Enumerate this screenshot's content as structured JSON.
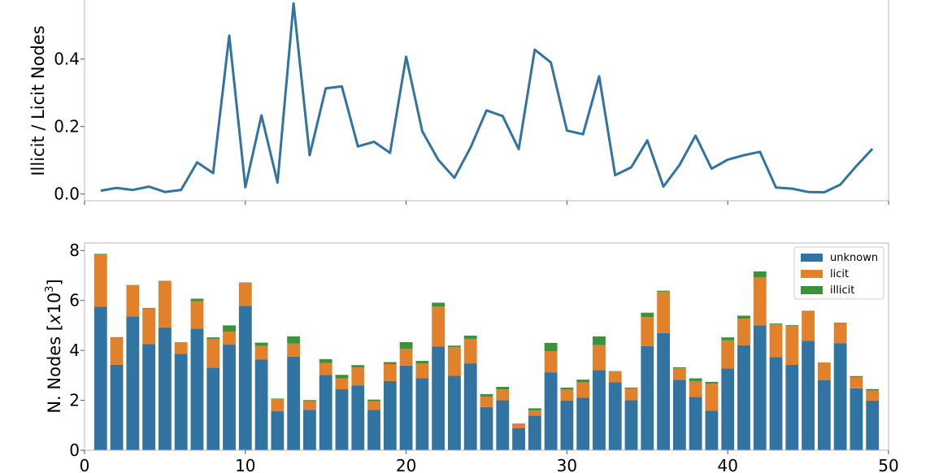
{
  "chart_data": [
    {
      "type": "line",
      "title": "",
      "ylabel": "Illicit / Licit Nodes",
      "xlim": [
        0,
        50
      ],
      "ylim": [
        -0.02,
        0.58
      ],
      "yticks": [
        "0.0",
        "0.2",
        "0.4"
      ],
      "ytick_values": [
        0,
        0.2,
        0.4
      ],
      "color": "#3274a1",
      "x": [
        1,
        2,
        3,
        4,
        5,
        6,
        7,
        8,
        9,
        10,
        11,
        12,
        13,
        14,
        15,
        16,
        17,
        18,
        19,
        20,
        21,
        22,
        23,
        24,
        25,
        26,
        27,
        28,
        29,
        30,
        31,
        32,
        33,
        34,
        35,
        36,
        37,
        38,
        39,
        40,
        41,
        42,
        43,
        44,
        45,
        46,
        47,
        48,
        49
      ],
      "values": [
        0.01,
        0.018,
        0.012,
        0.022,
        0.006,
        0.012,
        0.094,
        0.062,
        0.47,
        0.02,
        0.233,
        0.034,
        0.565,
        0.115,
        0.313,
        0.319,
        0.141,
        0.155,
        0.122,
        0.407,
        0.186,
        0.101,
        0.048,
        0.137,
        0.248,
        0.231,
        0.133,
        0.428,
        0.39,
        0.188,
        0.177,
        0.349,
        0.056,
        0.079,
        0.159,
        0.022,
        0.086,
        0.173,
        0.075,
        0.102,
        0.115,
        0.125,
        0.019,
        0.016,
        0.006,
        0.005,
        0.028,
        0.083,
        0.134
      ]
    },
    {
      "type": "bar",
      "stacked": true,
      "title": "",
      "ylabel": "N. Nodes [x10^3]",
      "ylabel_prefix": "N. Nodes [",
      "ylabel_italic": "x",
      "ylabel_base": "10",
      "ylabel_exp": "3",
      "ylabel_suffix": "]",
      "xlim": [
        0,
        50
      ],
      "ylim": [
        0,
        8.3
      ],
      "xticks": [
        "0",
        "10",
        "20",
        "30",
        "40",
        "50"
      ],
      "xtick_values": [
        0,
        10,
        20,
        30,
        40,
        50
      ],
      "yticks": [
        "0",
        "2",
        "4",
        "6",
        "8"
      ],
      "ytick_values": [
        0,
        2,
        4,
        6,
        8
      ],
      "legend_position": "top-right",
      "x": [
        1,
        2,
        3,
        4,
        5,
        6,
        7,
        8,
        9,
        10,
        11,
        12,
        13,
        14,
        15,
        16,
        17,
        18,
        19,
        20,
        21,
        22,
        23,
        24,
        25,
        26,
        27,
        28,
        29,
        30,
        31,
        32,
        33,
        34,
        35,
        36,
        37,
        38,
        39,
        40,
        41,
        42,
        43,
        44,
        45,
        46,
        47,
        48,
        49
      ],
      "series": [
        {
          "name": "unknown",
          "color": "#3274a1",
          "values": [
            5.75,
            3.42,
            5.36,
            4.25,
            4.92,
            3.86,
            4.87,
            3.31,
            4.23,
            5.78,
            3.63,
            1.56,
            3.75,
            1.62,
            3.02,
            2.44,
            2.6,
            1.61,
            2.77,
            3.39,
            2.89,
            4.15,
            2.98,
            3.48,
            1.73,
            2.0,
            0.89,
            1.39,
            3.12,
            1.99,
            2.1,
            3.21,
            2.72,
            2.0,
            4.17,
            4.69,
            2.82,
            2.13,
            1.58,
            3.27,
            4.21,
            5.0,
            3.73,
            3.42,
            4.38,
            2.81,
            4.29,
            2.48,
            1.99
          ]
        },
        {
          "name": "licit",
          "color": "#e1812c",
          "values": [
            2.1,
            1.09,
            1.25,
            1.42,
            1.86,
            0.46,
            1.1,
            1.14,
            0.52,
            0.92,
            0.55,
            0.49,
            0.52,
            0.35,
            0.48,
            0.44,
            0.71,
            0.36,
            0.68,
            0.67,
            0.58,
            1.6,
            1.15,
            0.98,
            0.42,
            0.44,
            0.16,
            0.2,
            0.85,
            0.44,
            0.62,
            1.0,
            0.43,
            0.47,
            1.16,
            1.66,
            0.46,
            0.64,
            1.08,
            1.13,
            1.06,
            1.92,
            1.32,
            1.56,
            1.2,
            0.7,
            0.8,
            0.45,
            0.4
          ]
        },
        {
          "name": "illicit",
          "color": "#3a923a",
          "values": [
            0.02,
            0.02,
            0.01,
            0.03,
            0.01,
            0.01,
            0.1,
            0.07,
            0.25,
            0.02,
            0.13,
            0.02,
            0.29,
            0.04,
            0.15,
            0.14,
            0.1,
            0.06,
            0.08,
            0.27,
            0.11,
            0.16,
            0.06,
            0.13,
            0.1,
            0.1,
            0.02,
            0.09,
            0.33,
            0.08,
            0.11,
            0.35,
            0.02,
            0.04,
            0.18,
            0.04,
            0.04,
            0.11,
            0.08,
            0.12,
            0.12,
            0.24,
            0.03,
            0.03,
            0.01,
            0.01,
            0.02,
            0.04,
            0.06
          ]
        }
      ]
    }
  ]
}
